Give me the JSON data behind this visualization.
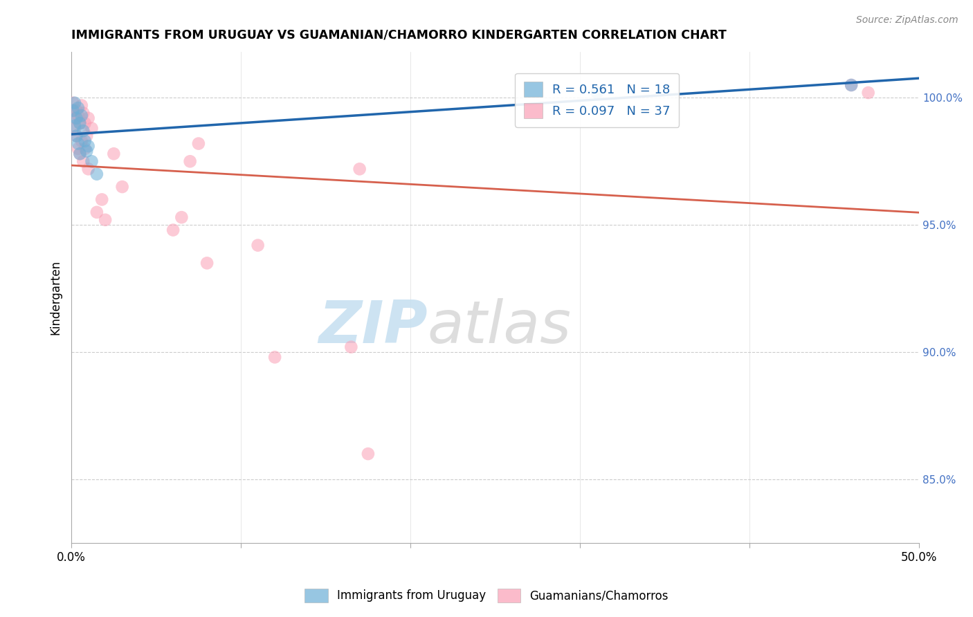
{
  "title": "IMMIGRANTS FROM URUGUAY VS GUAMANIAN/CHAMORRO KINDERGARTEN CORRELATION CHART",
  "source": "Source: ZipAtlas.com",
  "ylabel": "Kindergarten",
  "xmin": 0.0,
  "xmax": 0.5,
  "ymin": 82.5,
  "ymax": 101.8,
  "right_yticks": [
    85.0,
    90.0,
    95.0,
    100.0
  ],
  "right_ytick_labels": [
    "85.0%",
    "90.0%",
    "95.0%",
    "100.0%"
  ],
  "legend_r1": "0.561",
  "legend_n1": "18",
  "legend_r2": "0.097",
  "legend_n2": "37",
  "color_blue": "#6baed6",
  "color_pink": "#fa9fb5",
  "color_blue_line": "#2166ac",
  "color_pink_line": "#d6604d",
  "watermark_zip": "ZIP",
  "watermark_atlas": "atlas",
  "legend1_label": "Immigrants from Uruguay",
  "legend2_label": "Guamanians/Chamorros",
  "xtick_vals": [
    0.0,
    0.1,
    0.2,
    0.3,
    0.4,
    0.5
  ],
  "uruguay_x": [
    0.001,
    0.002,
    0.002,
    0.003,
    0.003,
    0.004,
    0.004,
    0.005,
    0.005,
    0.006,
    0.007,
    0.008,
    0.009,
    0.01,
    0.012,
    0.015,
    0.31,
    0.46
  ],
  "uruguay_y": [
    99.5,
    99.8,
    98.9,
    99.2,
    98.5,
    99.6,
    98.2,
    99.0,
    97.8,
    99.3,
    98.7,
    98.3,
    97.9,
    98.1,
    97.5,
    97.0,
    100.2,
    100.5
  ],
  "guam_x": [
    0.001,
    0.001,
    0.002,
    0.002,
    0.003,
    0.003,
    0.004,
    0.004,
    0.005,
    0.005,
    0.006,
    0.006,
    0.007,
    0.007,
    0.008,
    0.008,
    0.009,
    0.01,
    0.01,
    0.012,
    0.015,
    0.018,
    0.02,
    0.025,
    0.03,
    0.06,
    0.065,
    0.07,
    0.075,
    0.08,
    0.11,
    0.12,
    0.165,
    0.17,
    0.175,
    0.46,
    0.47
  ],
  "guam_y": [
    99.8,
    99.5,
    99.2,
    98.8,
    99.5,
    98.5,
    99.3,
    98.0,
    99.0,
    97.8,
    99.7,
    98.3,
    99.4,
    97.5,
    99.0,
    98.0,
    98.5,
    99.2,
    97.2,
    98.8,
    95.5,
    96.0,
    95.2,
    97.8,
    96.5,
    94.8,
    95.3,
    97.5,
    98.2,
    93.5,
    94.2,
    89.8,
    90.2,
    97.2,
    86.0,
    100.5,
    100.2
  ]
}
